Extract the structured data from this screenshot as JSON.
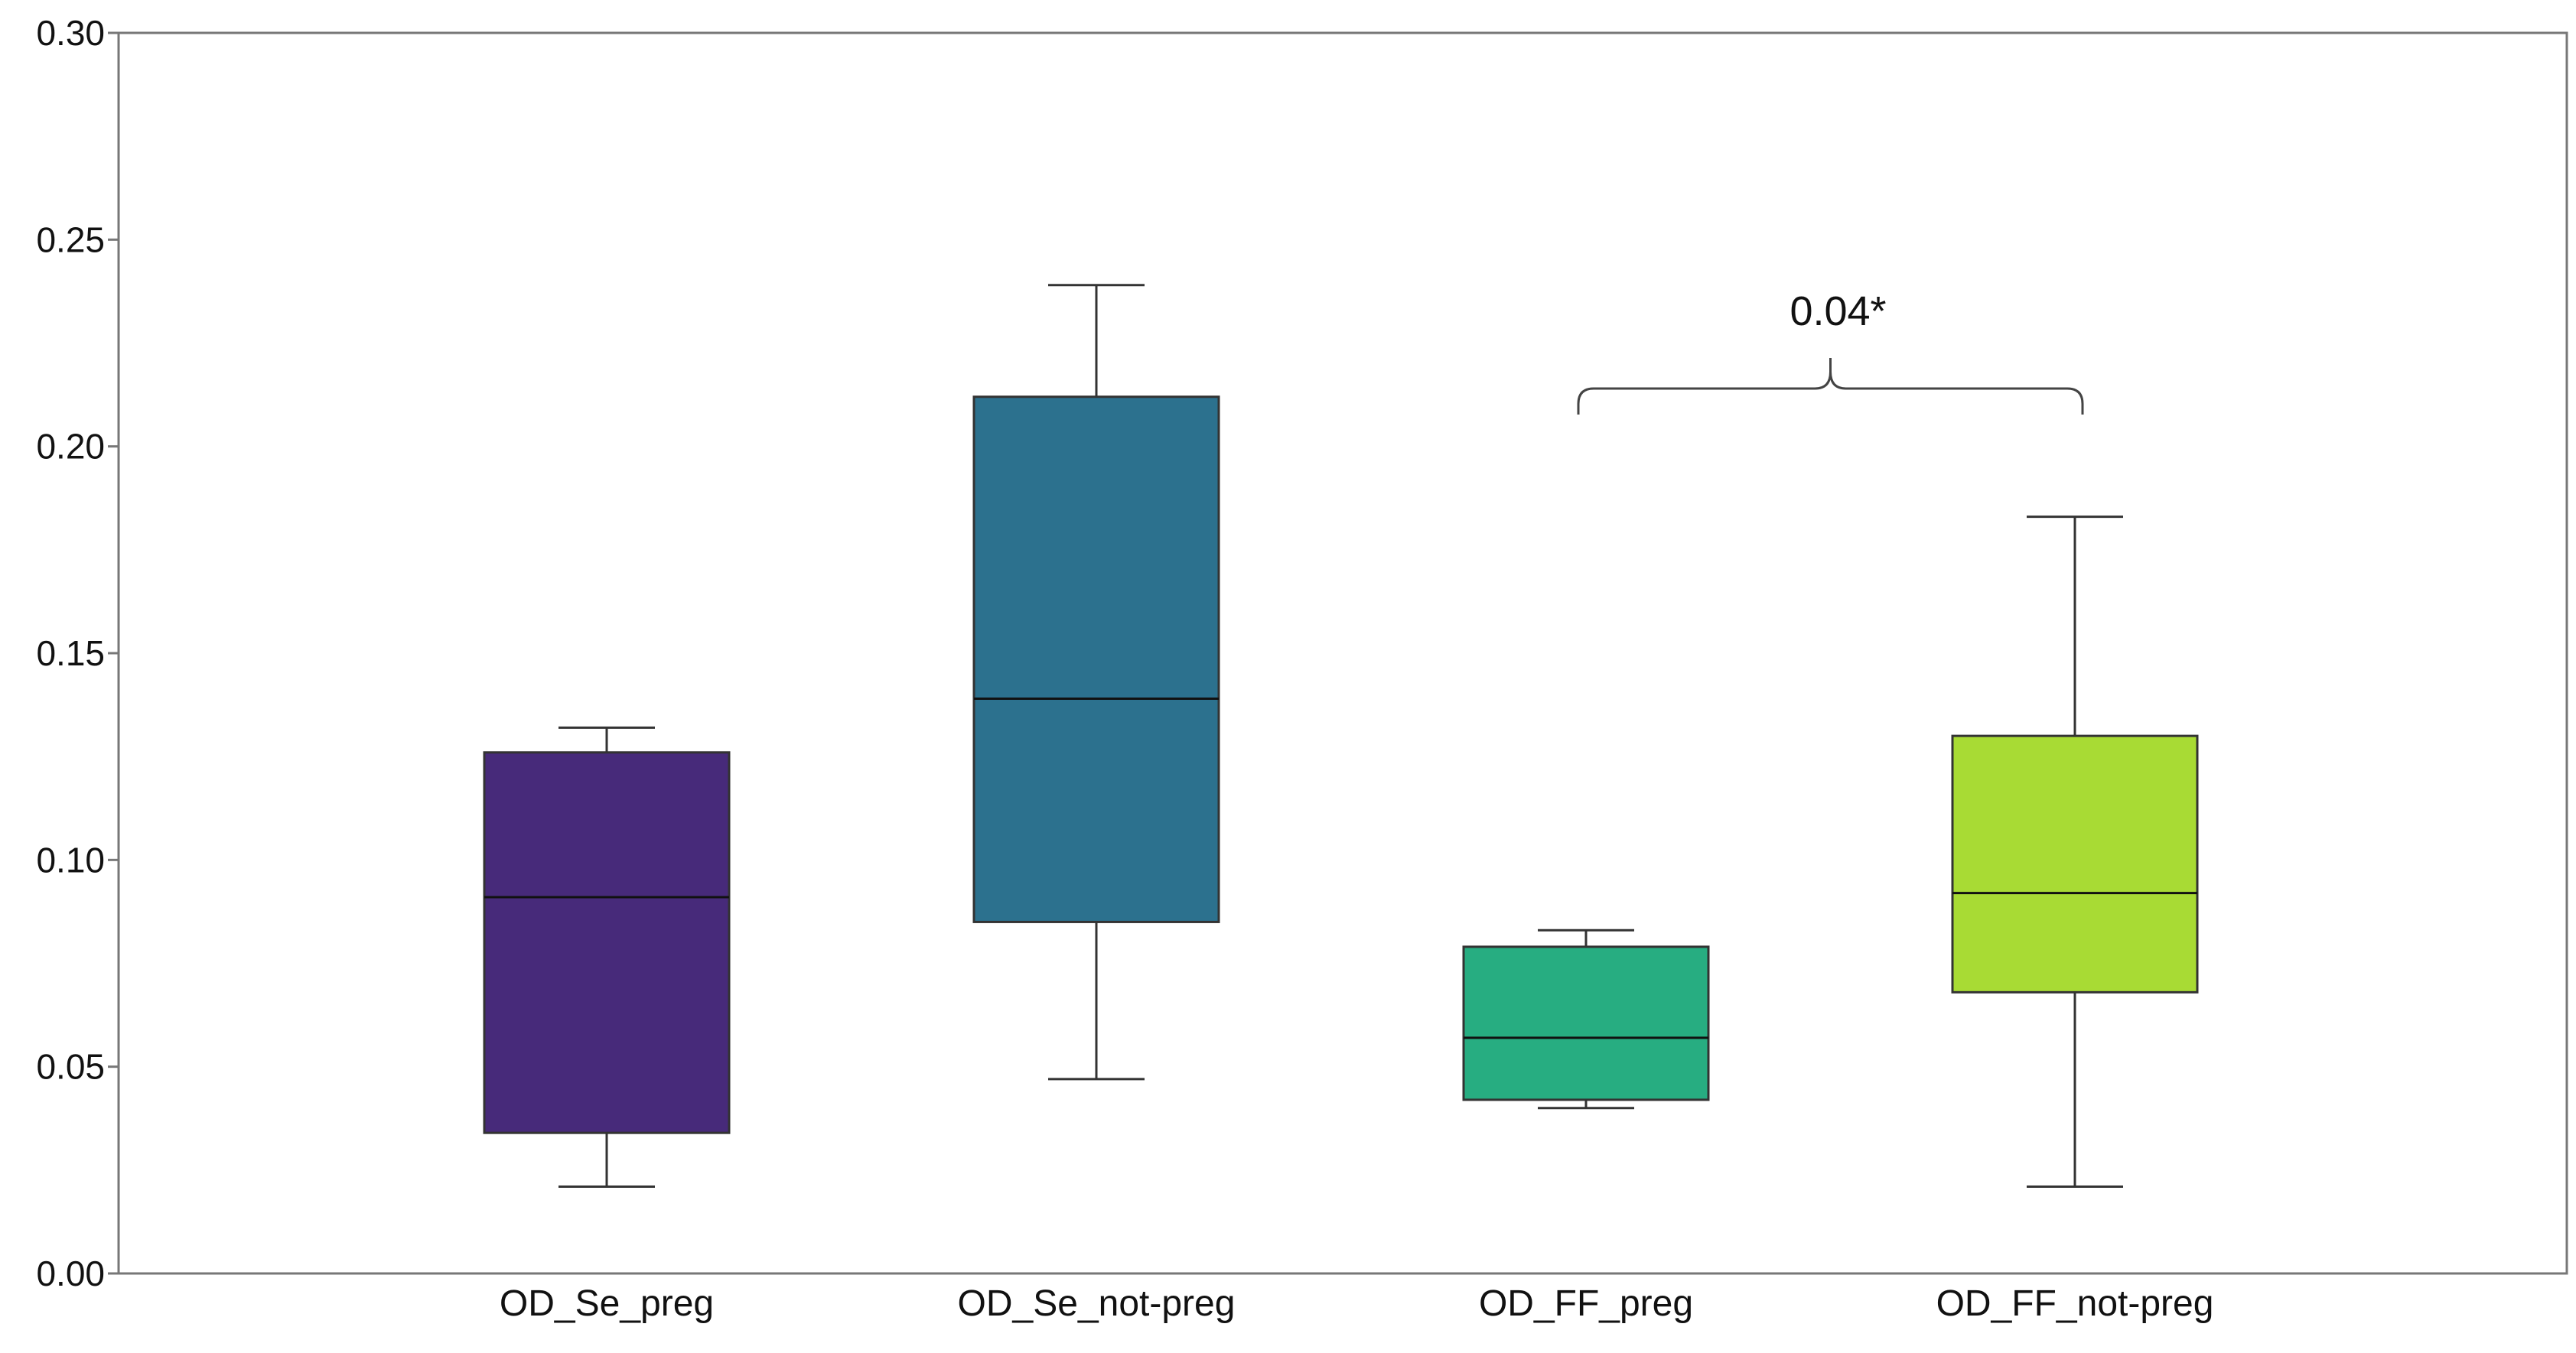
{
  "chart_data": {
    "type": "box",
    "title": "",
    "xlabel": "",
    "ylabel": "",
    "ylim": [
      0,
      0.3
    ],
    "y_ticks": [
      "0.00",
      "0.05",
      "0.10",
      "0.15",
      "0.20",
      "0.25",
      "0.30"
    ],
    "y_tick_values": [
      0,
      0.05,
      0.1,
      0.15,
      0.2,
      0.25,
      0.3
    ],
    "grid": false,
    "categories": [
      "OD_Se_preg",
      "OD_Se_not-preg",
      "OD_FF_preg",
      "OD_FF_not-preg"
    ],
    "boxes": [
      {
        "name": "OD_Se_preg",
        "whisker_low": 0.021,
        "q1": 0.034,
        "median": 0.091,
        "q3": 0.126,
        "whisker_high": 0.132,
        "color": "#472a7a"
      },
      {
        "name": "OD_Se_not-preg",
        "whisker_low": 0.047,
        "q1": 0.085,
        "median": 0.139,
        "q3": 0.212,
        "whisker_high": 0.239,
        "color": "#2c718e"
      },
      {
        "name": "OD_FF_preg",
        "whisker_low": 0.04,
        "q1": 0.042,
        "median": 0.057,
        "q3": 0.079,
        "whisker_high": 0.083,
        "color": "#27ad81"
      },
      {
        "name": "OD_FF_not-preg",
        "whisker_low": 0.021,
        "q1": 0.068,
        "median": 0.092,
        "q3": 0.13,
        "whisker_high": 0.183,
        "color": "#a8db34"
      }
    ],
    "annotations": [
      {
        "text": "0.04*",
        "from": "OD_FF_preg",
        "to": "OD_FF_not-preg"
      }
    ]
  }
}
